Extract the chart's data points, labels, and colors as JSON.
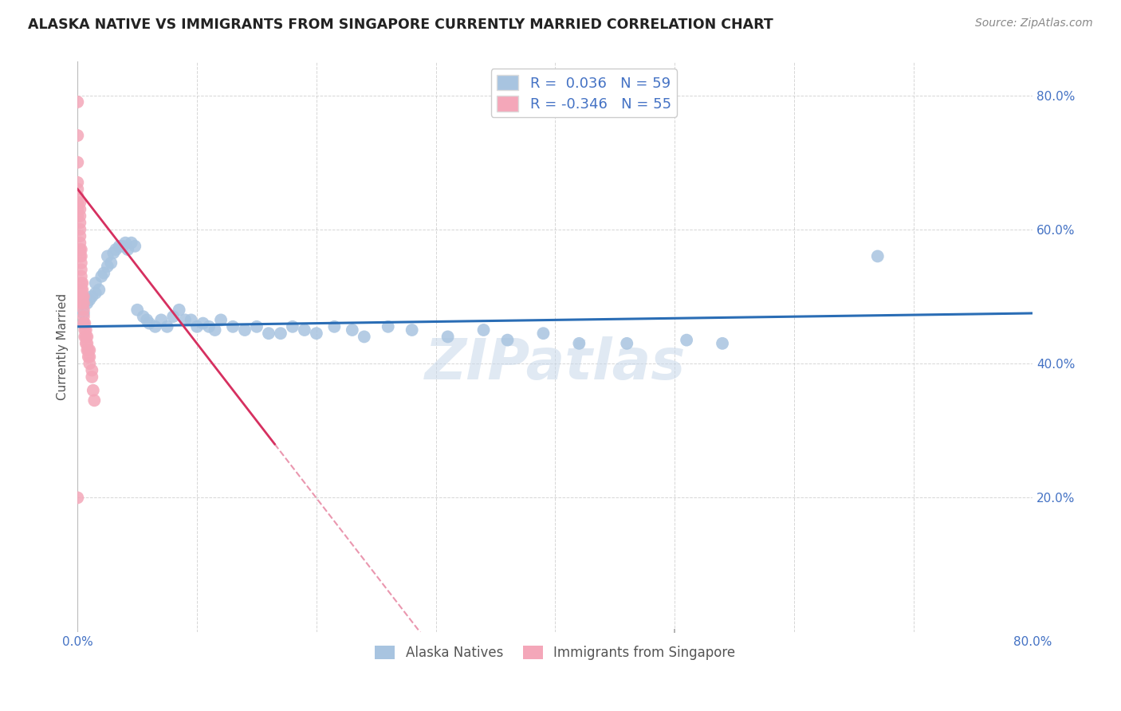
{
  "title": "ALASKA NATIVE VS IMMIGRANTS FROM SINGAPORE CURRENTLY MARRIED CORRELATION CHART",
  "source": "Source: ZipAtlas.com",
  "ylabel": "Currently Married",
  "xlim": [
    0.0,
    0.8
  ],
  "ylim": [
    0.0,
    0.85
  ],
  "xtick_vals": [
    0.0,
    0.1,
    0.2,
    0.3,
    0.4,
    0.5,
    0.6,
    0.7,
    0.8
  ],
  "xtick_labels": [
    "0.0%",
    "",
    "",
    "",
    "",
    "",
    "",
    "",
    "80.0%"
  ],
  "ytick_vals": [
    0.2,
    0.4,
    0.6,
    0.8
  ],
  "ytick_labels": [
    "20.0%",
    "40.0%",
    "60.0%",
    "80.0%"
  ],
  "blue_R": 0.036,
  "blue_N": 59,
  "pink_R": -0.346,
  "pink_N": 55,
  "blue_color": "#a8c4e0",
  "pink_color": "#f4a7b9",
  "blue_line_color": "#2a6db5",
  "pink_line_color": "#d63060",
  "watermark": "ZIPatlas",
  "legend_blue_label": "Alaska Natives",
  "legend_pink_label": "Immigrants from Singapore",
  "blue_x": [
    0.005,
    0.005,
    0.008,
    0.01,
    0.012,
    0.015,
    0.015,
    0.018,
    0.02,
    0.022,
    0.025,
    0.025,
    0.028,
    0.03,
    0.032,
    0.035,
    0.038,
    0.04,
    0.042,
    0.045,
    0.048,
    0.05,
    0.055,
    0.058,
    0.06,
    0.065,
    0.07,
    0.075,
    0.08,
    0.085,
    0.09,
    0.095,
    0.1,
    0.105,
    0.11,
    0.115,
    0.12,
    0.13,
    0.14,
    0.15,
    0.16,
    0.17,
    0.18,
    0.19,
    0.2,
    0.215,
    0.23,
    0.24,
    0.26,
    0.28,
    0.31,
    0.34,
    0.36,
    0.39,
    0.42,
    0.46,
    0.51,
    0.54,
    0.67
  ],
  "blue_y": [
    0.475,
    0.46,
    0.49,
    0.495,
    0.5,
    0.505,
    0.52,
    0.51,
    0.53,
    0.535,
    0.545,
    0.56,
    0.55,
    0.565,
    0.57,
    0.575,
    0.575,
    0.58,
    0.57,
    0.58,
    0.575,
    0.48,
    0.47,
    0.465,
    0.46,
    0.455,
    0.465,
    0.455,
    0.47,
    0.48,
    0.465,
    0.465,
    0.455,
    0.46,
    0.455,
    0.45,
    0.465,
    0.455,
    0.45,
    0.455,
    0.445,
    0.445,
    0.455,
    0.45,
    0.445,
    0.455,
    0.45,
    0.44,
    0.455,
    0.45,
    0.44,
    0.45,
    0.435,
    0.445,
    0.43,
    0.43,
    0.435,
    0.43,
    0.56
  ],
  "pink_x": [
    0.0,
    0.0,
    0.0,
    0.0,
    0.0,
    0.0,
    0.0,
    0.0,
    0.0,
    0.002,
    0.002,
    0.002,
    0.002,
    0.002,
    0.002,
    0.002,
    0.002,
    0.002,
    0.003,
    0.003,
    0.003,
    0.003,
    0.003,
    0.003,
    0.003,
    0.003,
    0.003,
    0.004,
    0.004,
    0.004,
    0.004,
    0.005,
    0.005,
    0.005,
    0.005,
    0.005,
    0.006,
    0.006,
    0.006,
    0.007,
    0.007,
    0.007,
    0.008,
    0.008,
    0.008,
    0.009,
    0.009,
    0.01,
    0.01,
    0.01,
    0.012,
    0.012,
    0.013,
    0.014,
    0.0
  ],
  "pink_y": [
    0.79,
    0.74,
    0.7,
    0.67,
    0.66,
    0.65,
    0.64,
    0.63,
    0.62,
    0.64,
    0.63,
    0.62,
    0.61,
    0.6,
    0.59,
    0.58,
    0.57,
    0.56,
    0.57,
    0.56,
    0.55,
    0.54,
    0.53,
    0.52,
    0.51,
    0.5,
    0.49,
    0.52,
    0.51,
    0.5,
    0.49,
    0.5,
    0.49,
    0.48,
    0.47,
    0.46,
    0.46,
    0.45,
    0.44,
    0.45,
    0.44,
    0.43,
    0.44,
    0.43,
    0.42,
    0.42,
    0.41,
    0.42,
    0.41,
    0.4,
    0.39,
    0.38,
    0.36,
    0.345,
    0.2
  ],
  "blue_trend_x0": 0.0,
  "blue_trend_x1": 0.8,
  "blue_trend_y0": 0.455,
  "blue_trend_y1": 0.475,
  "pink_trend_x0": 0.0,
  "pink_trend_x1": 0.165,
  "pink_trend_y0": 0.66,
  "pink_trend_y1": 0.28
}
